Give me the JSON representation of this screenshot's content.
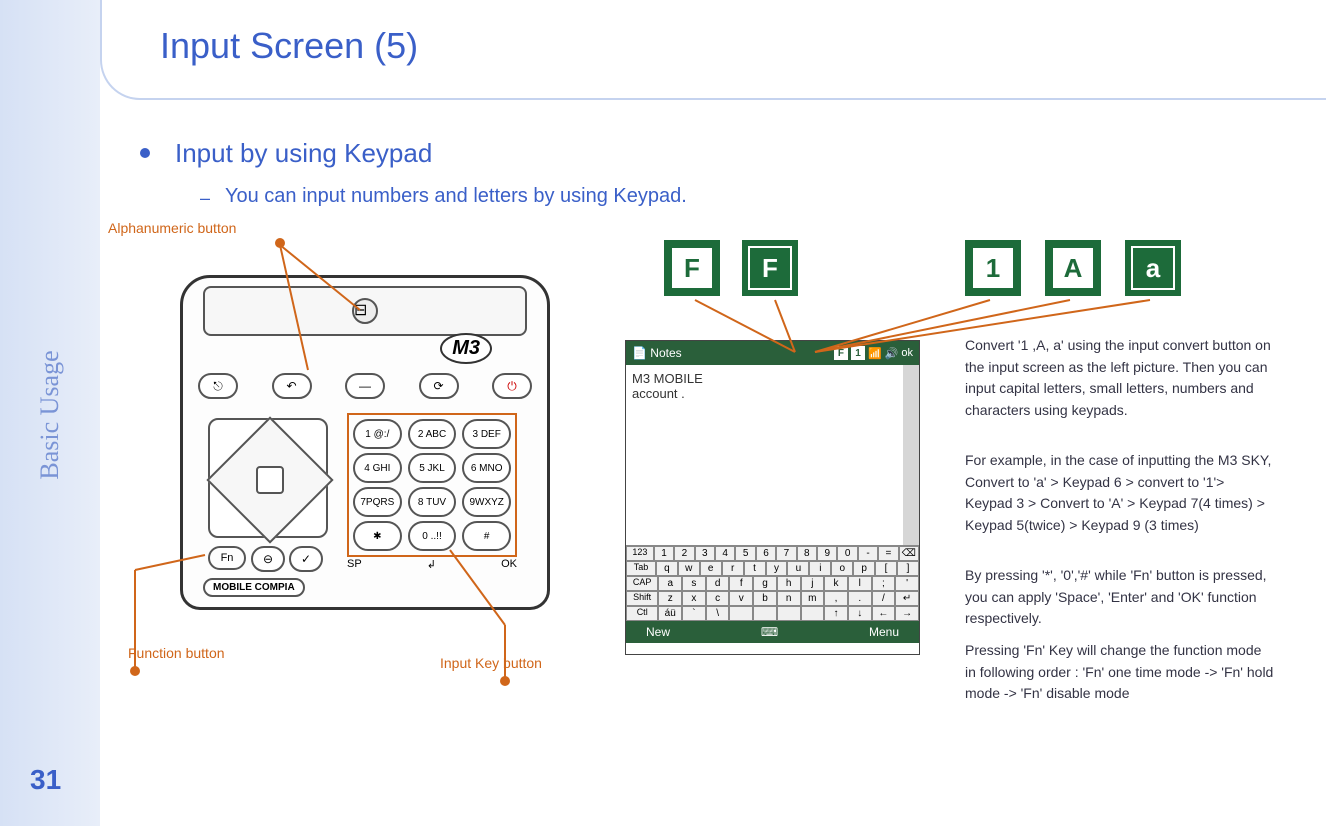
{
  "page": {
    "number": "31",
    "sidebar": "Basic Usage",
    "title": "Input Screen (5)"
  },
  "heading": "Input by using Keypad",
  "sub": "You can input numbers and letters by using Keypad.",
  "labels": {
    "alpha": "Alphanumeric button",
    "func": "Function button",
    "input": "Input Key button"
  },
  "device": {
    "logo": "M3",
    "row": [
      "⎋",
      "↶",
      "—",
      "⟳",
      "⏻"
    ],
    "fn": "Fn",
    "mid": [
      "⊖",
      "✓"
    ],
    "brand": "MOBILE COMPIA",
    "keys": [
      [
        "1 @:/",
        "2 ABC",
        "3 DEF"
      ],
      [
        "4 GHI",
        "5 JKL",
        "6 MNO"
      ],
      [
        "7PQRS",
        "8 TUV",
        "9WXYZ"
      ],
      [
        "✱",
        "0 ..!!",
        "#"
      ]
    ],
    "bottom": [
      "SP",
      "↲",
      "OK"
    ]
  },
  "shot": {
    "title": "Notes",
    "ok": "ok",
    "body1": "M3 MOBILE",
    "body2": "account .",
    "kbd": {
      "r1": [
        "123",
        "1",
        "2",
        "3",
        "4",
        "5",
        "6",
        "7",
        "8",
        "9",
        "0",
        "-",
        "=",
        "⌫"
      ],
      "r2": [
        "Tab",
        "q",
        "w",
        "e",
        "r",
        "t",
        "y",
        "u",
        "i",
        "o",
        "p",
        "[",
        "]"
      ],
      "r3": [
        "CAP",
        "a",
        "s",
        "d",
        "f",
        "g",
        "h",
        "j",
        "k",
        "l",
        ";",
        "'"
      ],
      "r4": [
        "Shift",
        "z",
        "x",
        "c",
        "v",
        "b",
        "n",
        "m",
        ",",
        ".",
        "/",
        "↵"
      ],
      "r5": [
        "Ctl",
        "áü",
        "`",
        "\\",
        " ",
        " ",
        " ",
        " ",
        "↑",
        "↓",
        "←",
        "→"
      ]
    },
    "bot": {
      "l": "New",
      "r": "Menu"
    }
  },
  "modes": {
    "f1": "F",
    "f2": "F",
    "m1": "1",
    "m2": "A",
    "m3": "a"
  },
  "para": {
    "p1": "Convert '1 ,A, a' using the input convert button on the input screen as the left picture. Then you can input capital letters, small letters, numbers and characters using keypads.",
    "p2": "For example, in the case of inputting the M3 SKY, Convert to 'a' > Keypad 6 > convert to '1'> Keypad 3 > Convert to 'A' > Keypad 7(4 times) > Keypad 5(twice) > Keypad 9 (3 times)",
    "p3": "By pressing '*', '0','#' while 'Fn' button is pressed, you can apply 'Space', 'Enter' and 'OK' function respectively.",
    "p4": "Pressing 'Fn' Key will change the function mode in following order : 'Fn' one time mode -> 'Fn' hold mode -> 'Fn' disable mode"
  },
  "colors": {
    "accent": "#3a5fc8",
    "callout": "#d0661a",
    "green": "#1d6b3a"
  }
}
